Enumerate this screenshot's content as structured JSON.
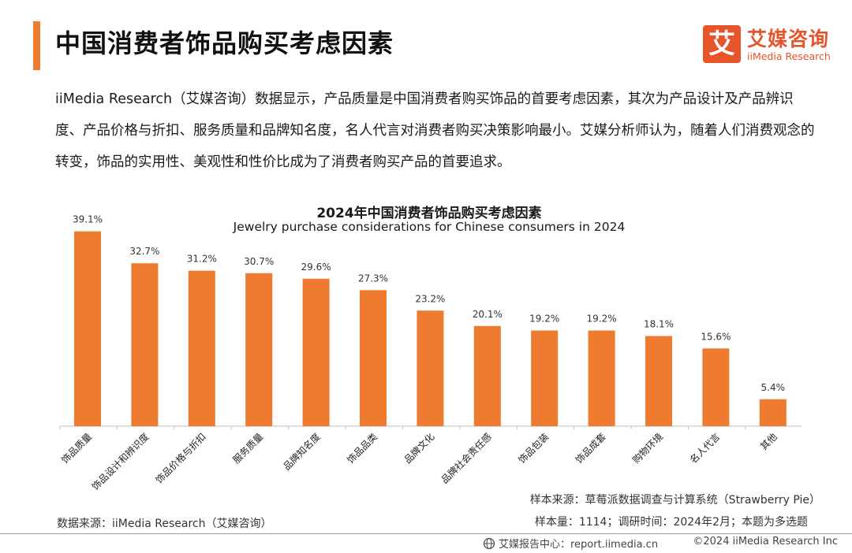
{
  "header": {
    "title": "中国消费者饰品购买考虑因素",
    "logo_mark": "艾",
    "logo_cn": "艾媒咨询",
    "logo_en": "iiMedia Research"
  },
  "intro": "iiMedia Research（艾媒咨询）数据显示，产品质量是中国消费者购买饰品的首要考虑因素，其次为产品设计及产品辨识度、产品价格与折扣、服务质量和品牌知名度，名人代言对消费者购买决策影响最小。艾媒分析师认为，随着人们消费观念的转变，饰品的实用性、美观性和性价比成为了消费者购买产品的首要追求。",
  "chart_data": {
    "type": "bar",
    "title": "2024年中国消费者饰品购买考虑因素",
    "subtitle": "Jewelry purchase considerations for Chinese consumers in 2024",
    "categories": [
      "饰品质量",
      "饰品设计和辨识度",
      "饰品价格与折扣",
      "服务质量",
      "品牌知名度",
      "饰品品类",
      "品牌文化",
      "品牌社会责任感",
      "饰品包装",
      "饰品成套",
      "购物环境",
      "名人代言",
      "其他"
    ],
    "values": [
      39.1,
      32.7,
      31.2,
      30.7,
      29.6,
      27.3,
      23.2,
      20.1,
      19.2,
      19.2,
      18.1,
      15.6,
      5.4
    ],
    "labels": [
      "39.1%",
      "32.7%",
      "31.2%",
      "30.7%",
      "29.6%",
      "27.3%",
      "23.2%",
      "20.1%",
      "19.2%",
      "19.2%",
      "18.1%",
      "15.6%",
      "5.4%"
    ],
    "unit": "%",
    "ylim": [
      0,
      40
    ],
    "color": "#ee7b30"
  },
  "sources": {
    "data_source": "数据来源：iiMedia Research（艾媒咨询）",
    "sample_source": "样本来源：草莓派数据调查与计算系统（Strawberry Pie）",
    "sample_info": "样本量：1114；调研时间：2024年2月；本题为多选题"
  },
  "footer": {
    "left": "艾媒报告中心：report.iimedia.cn",
    "right": "©2024  iiMedia Research  Inc"
  }
}
